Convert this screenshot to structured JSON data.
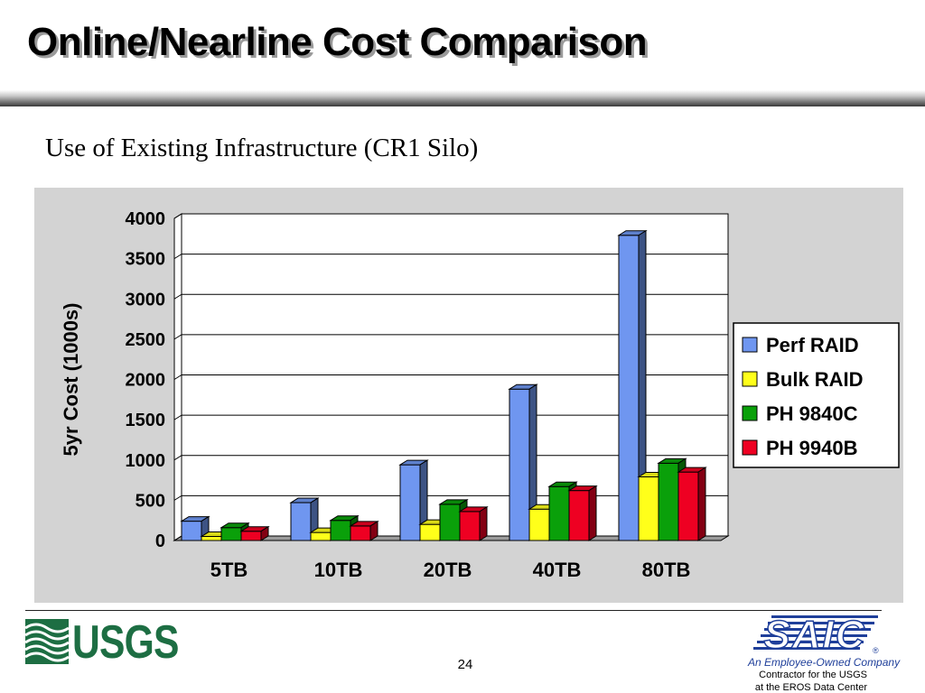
{
  "slide": {
    "title": "Online/Nearline Cost Comparison",
    "subtitle": "Use of Existing Infrastructure (CR1 Silo)",
    "page_number": "24"
  },
  "footer": {
    "usgs_logo_text": "USGS",
    "saic_logo_text": "SAIC",
    "saic_tagline": "An Employee-Owned Company",
    "saic_line1": "Contractor for the USGS",
    "saic_line2": "at the EROS Data Center"
  },
  "colors": {
    "perf_raid": "#6f96f0",
    "bulk_raid": "#ffff1a",
    "ph_9840c": "#0aa00a",
    "ph_9940b": "#ee0022",
    "panel": "#d3d3d3",
    "usgs_green": "#1d6e43",
    "saic_blue": "#1f3f9a"
  },
  "chart_data": {
    "type": "bar",
    "style": "3d-clustered-column",
    "title": "",
    "xlabel": "",
    "ylabel": "5yr Cost (1000s)",
    "ylim": [
      0,
      4000
    ],
    "yticks": [
      0,
      500,
      1000,
      1500,
      2000,
      2500,
      3000,
      3500,
      4000
    ],
    "grid": true,
    "legend_position": "right",
    "categories": [
      "5TB",
      "10TB",
      "20TB",
      "40TB",
      "80TB"
    ],
    "series": [
      {
        "name": "Perf RAID",
        "values": [
          240,
          470,
          940,
          1880,
          3790
        ]
      },
      {
        "name": "Bulk RAID",
        "values": [
          50,
          100,
          200,
          390,
          790
        ]
      },
      {
        "name": "PH 9840C",
        "values": [
          160,
          250,
          450,
          670,
          960
        ]
      },
      {
        "name": "PH 9940B",
        "values": [
          115,
          180,
          360,
          620,
          850
        ]
      }
    ]
  }
}
